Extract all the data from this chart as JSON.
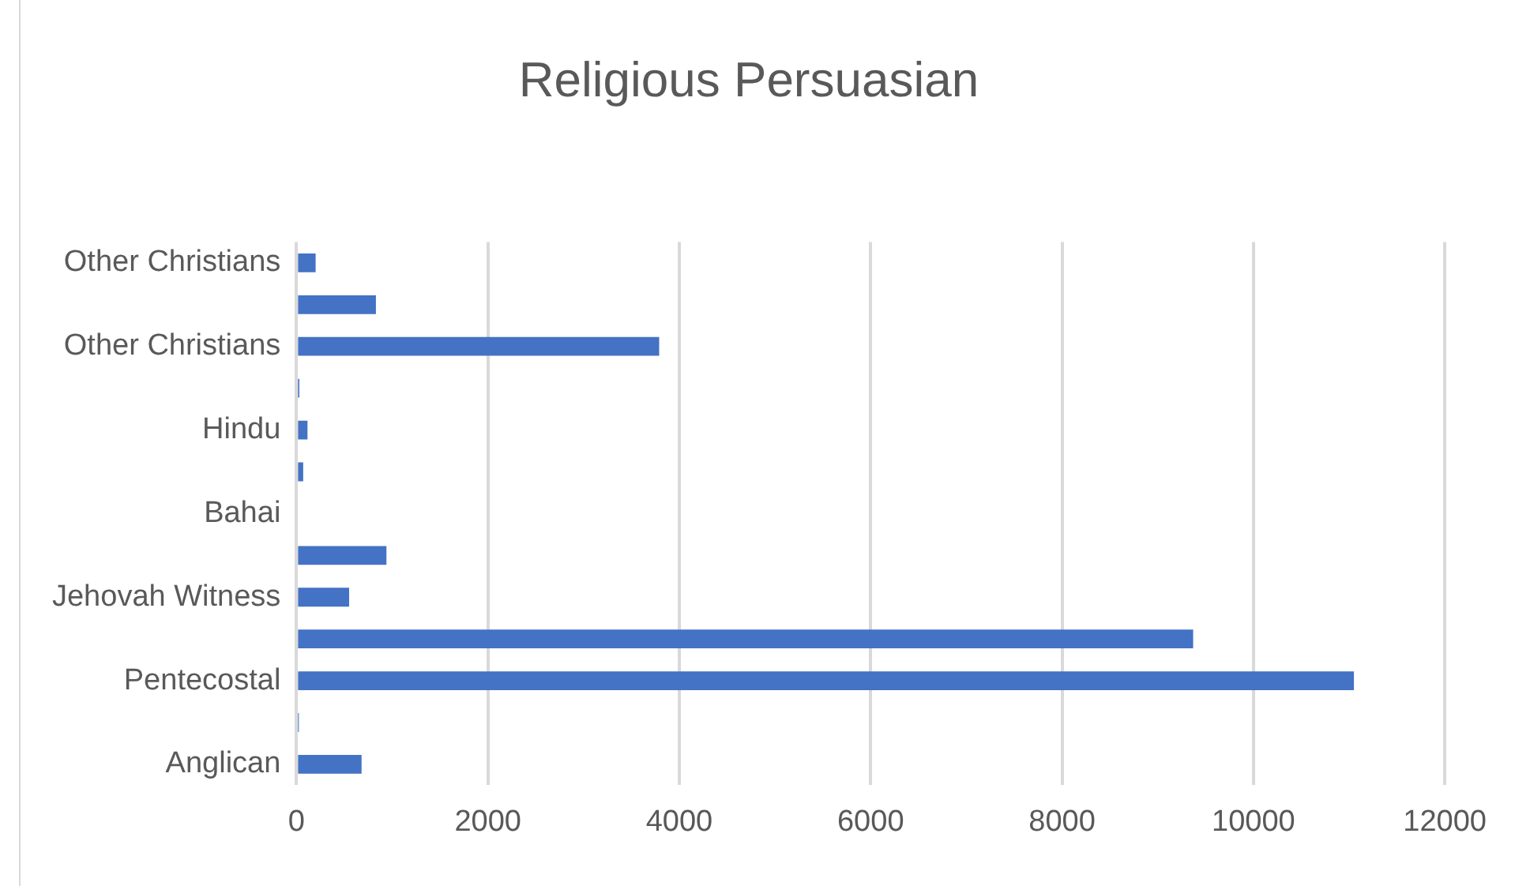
{
  "chart_data": {
    "type": "bar",
    "orientation": "horizontal",
    "title": "Religious Persuasian",
    "categories": [
      "Other Christians",
      null,
      "Other Christians",
      null,
      "Hindu",
      null,
      "Bahai",
      null,
      "Jehovah Witness",
      null,
      "Pentecostal",
      null,
      "Anglican"
    ],
    "values": [
      200,
      830,
      3790,
      30,
      115,
      70,
      0,
      940,
      550,
      9370,
      11050,
      25,
      680
    ],
    "color": "#4472c4",
    "xlim": [
      0,
      12000
    ],
    "xticks": [
      0,
      2000,
      4000,
      6000,
      8000,
      10000,
      12000
    ],
    "grid": "x"
  }
}
